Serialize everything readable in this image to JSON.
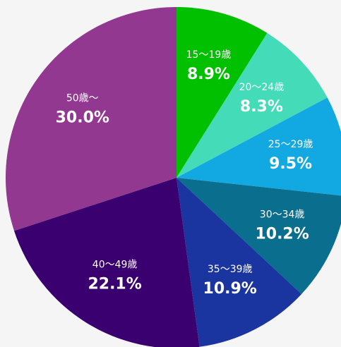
{
  "chart_data": {
    "type": "pie",
    "categories": [
      "15～19歳",
      "20～24歳",
      "25～29歳",
      "30～34歳",
      "35～39歳",
      "40～49歳",
      "50歳～"
    ],
    "values": [
      8.9,
      8.3,
      9.5,
      10.2,
      10.9,
      22.1,
      30.0
    ],
    "value_labels": [
      "8.9%",
      "8.3%",
      "9.5%",
      "10.2%",
      "10.9%",
      "22.1%",
      "30.0%"
    ],
    "colors": [
      "#00c000",
      "#44dcb8",
      "#12a8e2",
      "#0a6e8e",
      "#1a34a0",
      "#3a0070",
      "#923890"
    ]
  }
}
